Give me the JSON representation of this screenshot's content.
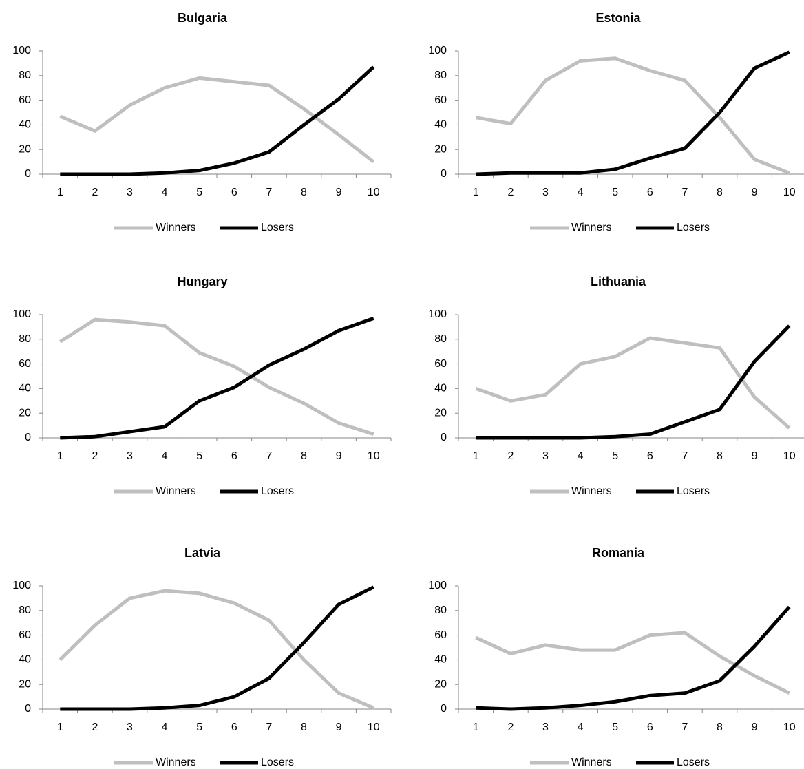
{
  "chart_data": [
    {
      "type": "line",
      "title": "Bulgaria",
      "categories": [
        "1",
        "2",
        "3",
        "4",
        "5",
        "6",
        "7",
        "8",
        "9",
        "10"
      ],
      "series": [
        {
          "name": "Winners",
          "color": "#bfbfbf",
          "values": [
            47,
            35,
            56,
            70,
            78,
            75,
            72,
            53,
            32,
            10
          ]
        },
        {
          "name": "Losers",
          "color": "#000000",
          "values": [
            0,
            0,
            0,
            1,
            3,
            9,
            18,
            40,
            61,
            87
          ]
        }
      ],
      "ylim": [
        0,
        100
      ],
      "yticks": [
        0,
        20,
        40,
        60,
        80,
        100
      ],
      "legend": "bottom"
    },
    {
      "type": "line",
      "title": "Estonia",
      "categories": [
        "1",
        "2",
        "3",
        "4",
        "5",
        "6",
        "7",
        "8",
        "9",
        "10"
      ],
      "series": [
        {
          "name": "Winners",
          "color": "#bfbfbf",
          "values": [
            46,
            41,
            76,
            92,
            94,
            84,
            76,
            46,
            12,
            1
          ]
        },
        {
          "name": "Losers",
          "color": "#000000",
          "values": [
            0,
            1,
            1,
            1,
            4,
            13,
            21,
            50,
            86,
            99
          ]
        }
      ],
      "ylim": [
        0,
        100
      ],
      "yticks": [
        0,
        20,
        40,
        60,
        80,
        100
      ],
      "legend": "bottom"
    },
    {
      "type": "line",
      "title": "Hungary",
      "categories": [
        "1",
        "2",
        "3",
        "4",
        "5",
        "6",
        "7",
        "8",
        "9",
        "10"
      ],
      "series": [
        {
          "name": "Winners",
          "color": "#bfbfbf",
          "values": [
            78,
            96,
            94,
            91,
            69,
            58,
            41,
            28,
            12,
            3
          ]
        },
        {
          "name": "Losers",
          "color": "#000000",
          "values": [
            0,
            1,
            5,
            9,
            30,
            41,
            59,
            72,
            87,
            97
          ]
        }
      ],
      "ylim": [
        0,
        100
      ],
      "yticks": [
        0,
        20,
        40,
        60,
        80,
        100
      ],
      "legend": "bottom"
    },
    {
      "type": "line",
      "title": "Lithuania",
      "categories": [
        "1",
        "2",
        "3",
        "4",
        "5",
        "6",
        "7",
        "8",
        "9",
        "10"
      ],
      "series": [
        {
          "name": "Winners",
          "color": "#bfbfbf",
          "values": [
            40,
            30,
            35,
            60,
            66,
            81,
            77,
            73,
            33,
            8
          ]
        },
        {
          "name": "Losers",
          "color": "#000000",
          "values": [
            0,
            0,
            0,
            0,
            1,
            3,
            13,
            23,
            62,
            91
          ]
        }
      ],
      "ylim": [
        0,
        100
      ],
      "yticks": [
        0,
        20,
        40,
        60,
        80,
        100
      ],
      "legend": "bottom"
    },
    {
      "type": "line",
      "title": "Latvia",
      "categories": [
        "1",
        "2",
        "3",
        "4",
        "5",
        "6",
        "7",
        "8",
        "9",
        "10"
      ],
      "series": [
        {
          "name": "Winners",
          "color": "#bfbfbf",
          "values": [
            40,
            68,
            90,
            96,
            94,
            86,
            72,
            40,
            13,
            1
          ]
        },
        {
          "name": "Losers",
          "color": "#000000",
          "values": [
            0,
            0,
            0,
            1,
            3,
            10,
            25,
            54,
            85,
            99
          ]
        }
      ],
      "ylim": [
        0,
        100
      ],
      "yticks": [
        0,
        20,
        40,
        60,
        80,
        100
      ],
      "legend": "bottom"
    },
    {
      "type": "line",
      "title": "Romania",
      "categories": [
        "1",
        "2",
        "3",
        "4",
        "5",
        "6",
        "7",
        "8",
        "9",
        "10"
      ],
      "series": [
        {
          "name": "Winners",
          "color": "#bfbfbf",
          "values": [
            58,
            45,
            52,
            48,
            48,
            60,
            62,
            43,
            27,
            13
          ]
        },
        {
          "name": "Losers",
          "color": "#000000",
          "values": [
            1,
            0,
            1,
            3,
            6,
            11,
            13,
            23,
            51,
            83
          ]
        }
      ],
      "ylim": [
        0,
        100
      ],
      "yticks": [
        0,
        20,
        40,
        60,
        80,
        100
      ],
      "legend": "bottom"
    }
  ]
}
